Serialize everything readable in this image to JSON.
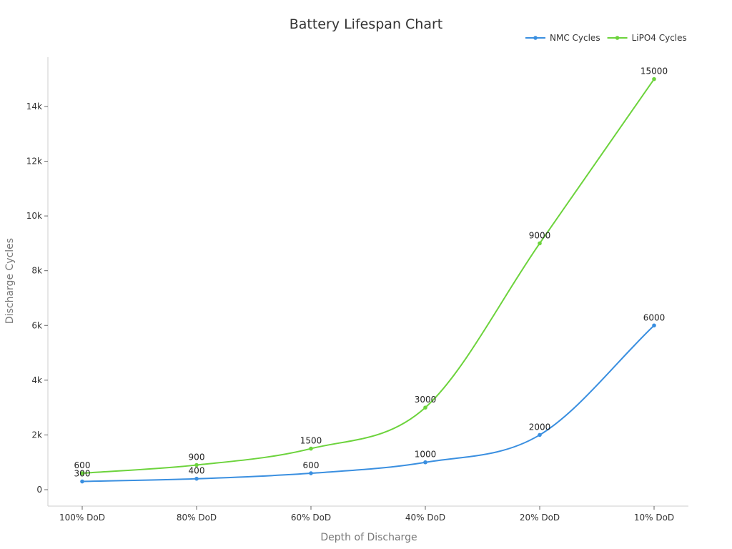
{
  "chart_data": {
    "type": "line",
    "title": "Battery Lifespan Chart",
    "xlabel": "Depth of Discharge",
    "ylabel": "Discharge Cycles",
    "categories": [
      "100% DoD",
      "80% DoD",
      "60% DoD",
      "40% DoD",
      "20% DoD",
      "10% DoD"
    ],
    "series": [
      {
        "name": "NMC Cycles",
        "color": "#3a8fe0",
        "values": [
          300,
          400,
          600,
          1000,
          2000,
          6000
        ]
      },
      {
        "name": "LiPO4 Cycles",
        "color": "#6cd33c",
        "values": [
          600,
          900,
          1500,
          3000,
          9000,
          15000
        ]
      }
    ],
    "ylim": [
      -600,
      15800
    ],
    "yticks": [
      0,
      2000,
      4000,
      6000,
      8000,
      10000,
      12000,
      14000
    ],
    "ytick_labels": [
      "0",
      "2k",
      "4k",
      "6k",
      "8k",
      "10k",
      "12k",
      "14k"
    ],
    "grid": false,
    "legend": "top-right",
    "data_labels": true
  }
}
